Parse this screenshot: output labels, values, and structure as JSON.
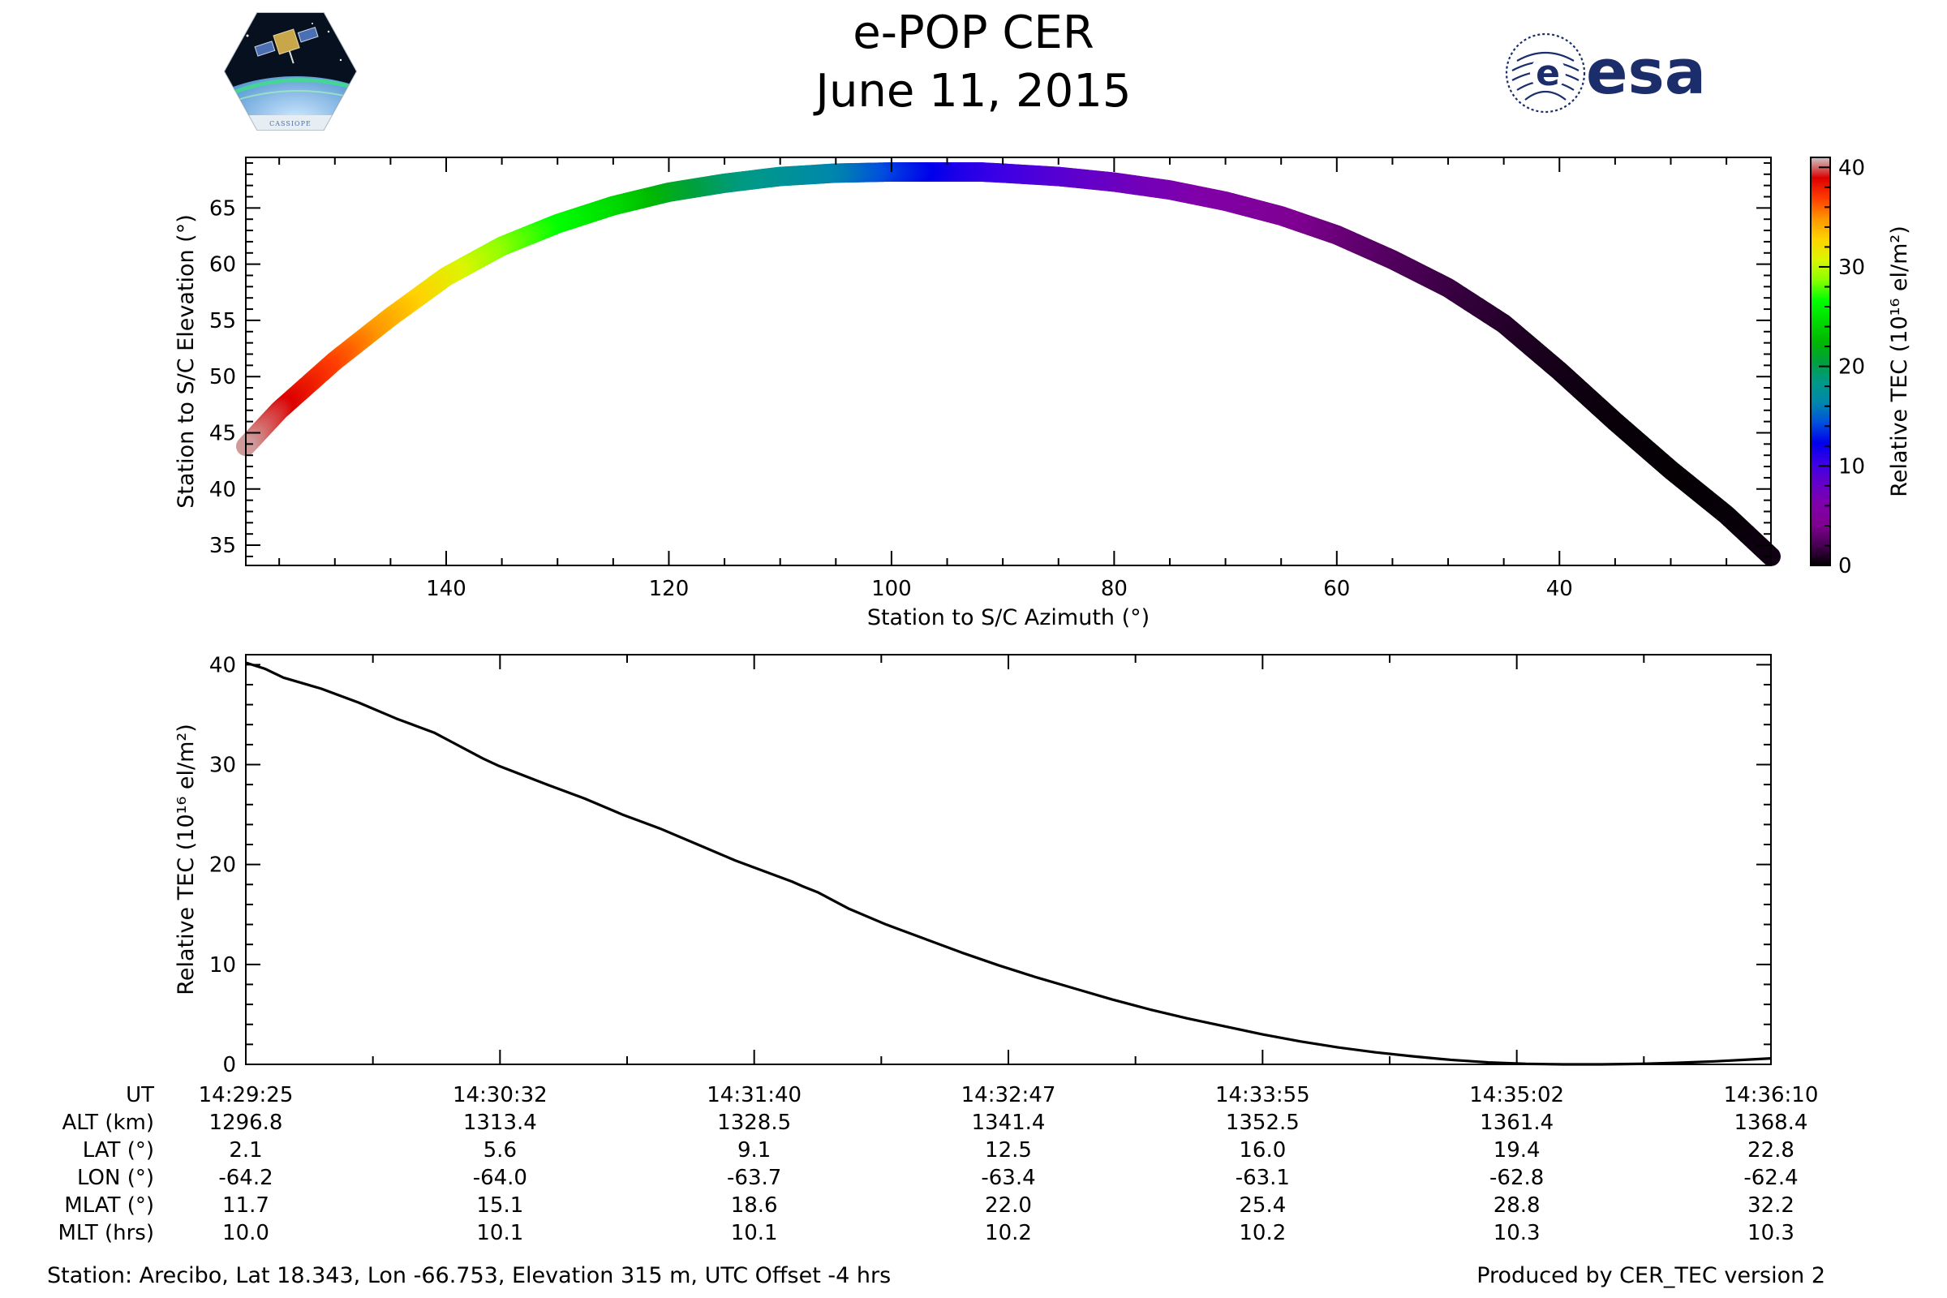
{
  "title": "e-POP CER",
  "date": "June 11, 2015",
  "logos": {
    "left": {
      "icon": "cassiope-mission-logo",
      "text": "CASSIOPE"
    },
    "right": {
      "icon": "esa-logo",
      "text": "esa",
      "color": "#1b2d6b"
    }
  },
  "chart_data": [
    {
      "type": "scatter",
      "title": "",
      "xlabel": "Station to S/C Azimuth (°)",
      "ylabel": "Station to S/C Elevation (°)",
      "xlim": [
        158,
        21
      ],
      "ylim": [
        33.2,
        69.5
      ],
      "xticks": [
        140,
        120,
        100,
        80,
        60,
        40
      ],
      "yticks": [
        35,
        40,
        45,
        50,
        55,
        60,
        65
      ],
      "x": [
        158,
        155,
        150,
        145,
        140,
        135,
        130,
        125,
        120,
        115,
        110,
        105,
        100,
        95,
        92,
        90,
        85,
        80,
        75,
        70,
        65,
        60,
        55,
        50,
        45,
        40,
        35,
        30,
        25,
        21
      ],
      "y": [
        43.8,
        47.0,
        51.4,
        55.3,
        58.9,
        61.6,
        63.6,
        65.2,
        66.4,
        67.2,
        67.8,
        68.1,
        68.2,
        68.2,
        68.2,
        68.1,
        67.8,
        67.3,
        66.6,
        65.6,
        64.3,
        62.6,
        60.4,
        57.9,
        54.7,
        50.5,
        46.0,
        41.7,
        37.7,
        34.0
      ],
      "color_values": [
        40.5,
        39.2,
        36.5,
        33.8,
        31.2,
        28.4,
        26.4,
        24.2,
        21.2,
        18.9,
        17.5,
        16.0,
        13.5,
        11.4,
        10.5,
        10.0,
        8.7,
        7.5,
        6.5,
        5.4,
        4.3,
        3.2,
        2.3,
        1.6,
        1.0,
        0.5,
        0.2,
        0.1,
        0.2,
        0.5
      ],
      "colorbar": {
        "label": "Relative TEC (10¹⁶ el/m²)",
        "range": [
          0,
          41
        ],
        "ticks": [
          0,
          10,
          20,
          30,
          40
        ],
        "colormap": "nipy_spectral"
      }
    },
    {
      "type": "line",
      "title": "",
      "xlabel": "UT",
      "ylabel": "Relative TEC (10¹⁶ el/m²)",
      "ylim": [
        0,
        41
      ],
      "yticks": [
        0,
        10,
        20,
        30,
        40
      ],
      "xticks": [
        "14:29:25",
        "14:30:32",
        "14:31:40",
        "14:32:47",
        "14:33:55",
        "14:35:02",
        "14:36:10"
      ],
      "series": [
        {
          "name": "Relative TEC",
          "color": "#000000",
          "t": [
            0,
            5,
            10,
            20,
            30,
            40,
            45,
            50,
            55,
            60,
            63,
            67,
            80,
            90,
            100,
            110,
            120,
            130,
            135,
            140,
            145,
            148,
            152,
            155,
            160,
            170,
            180,
            190,
            200,
            205,
            210,
            220,
            230,
            240,
            250,
            260,
            270,
            280,
            290,
            300,
            310,
            320,
            330,
            340,
            350,
            360,
            370,
            380,
            390,
            400,
            405
          ],
          "values": [
            40.2,
            39.6,
            38.7,
            37.6,
            36.2,
            34.6,
            33.9,
            33.2,
            32.2,
            31.2,
            30.6,
            29.9,
            28.0,
            26.6,
            25.0,
            23.6,
            22.0,
            20.4,
            19.7,
            19.0,
            18.3,
            17.8,
            17.2,
            16.6,
            15.6,
            14.0,
            12.6,
            11.2,
            9.9,
            9.3,
            8.7,
            7.6,
            6.5,
            5.5,
            4.6,
            3.8,
            3.0,
            2.3,
            1.7,
            1.2,
            0.8,
            0.45,
            0.2,
            0.05,
            0.0,
            0.0,
            0.05,
            0.15,
            0.3,
            0.5,
            0.6
          ]
        }
      ],
      "table": {
        "row_labels": [
          "UT",
          "ALT (km)",
          "LAT (°)",
          "LON (°)",
          "MLAT (°)",
          "MLT (hrs)"
        ],
        "rows": [
          [
            "14:29:25",
            "14:30:32",
            "14:31:40",
            "14:32:47",
            "14:33:55",
            "14:35:02",
            "14:36:10"
          ],
          [
            "1296.8",
            "1313.4",
            "1328.5",
            "1341.4",
            "1352.5",
            "1361.4",
            "1368.4"
          ],
          [
            "2.1",
            "5.6",
            "9.1",
            "12.5",
            "16.0",
            "19.4",
            "22.8"
          ],
          [
            "-64.2",
            "-64.0",
            "-63.7",
            "-63.4",
            "-63.1",
            "-62.8",
            "-62.4"
          ],
          [
            "11.7",
            "15.1",
            "18.6",
            "22.0",
            "25.4",
            "28.8",
            "32.2"
          ],
          [
            "10.0",
            "10.1",
            "10.1",
            "10.2",
            "10.2",
            "10.3",
            "10.3"
          ]
        ]
      }
    }
  ],
  "footer": {
    "station": "Station: Arecibo, Lat 18.343, Lon -66.753, Elevation 315 m, UTC Offset -4 hrs",
    "produced_by": "Produced by CER_TEC version 2"
  }
}
